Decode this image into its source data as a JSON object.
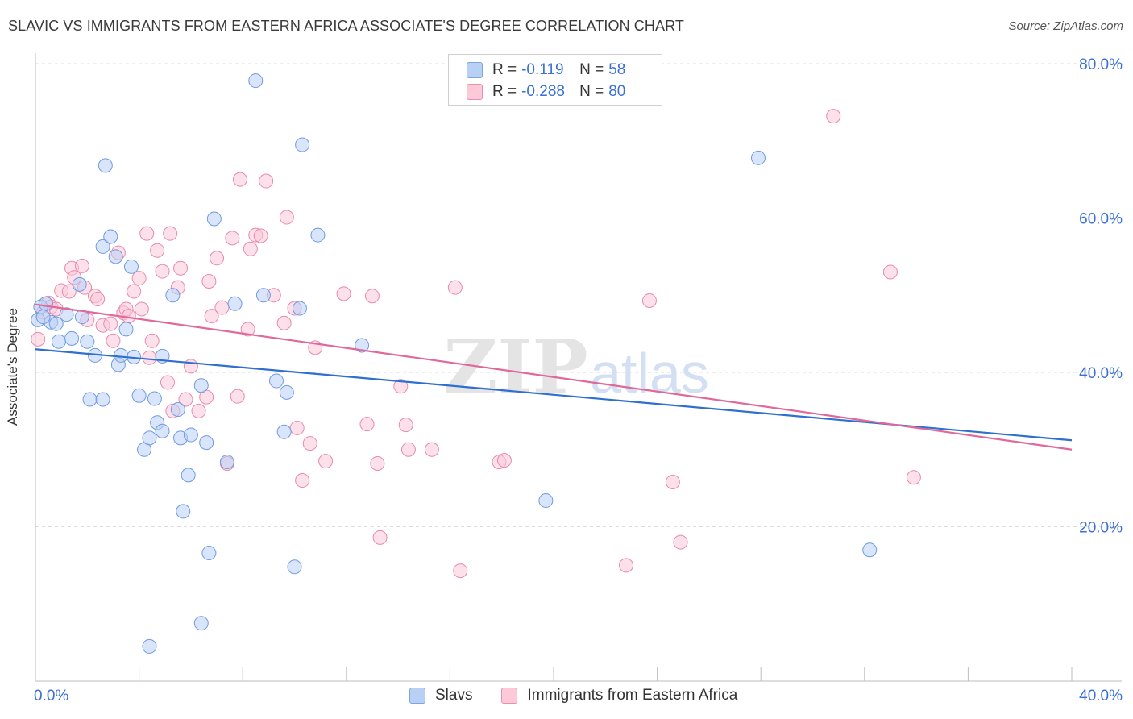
{
  "title": "SLAVIC VS IMMIGRANTS FROM EASTERN AFRICA ASSOCIATE'S DEGREE CORRELATION CHART",
  "source": "Source: ZipAtlas.com",
  "legend": {
    "r_label": "R =",
    "n_label": "N =",
    "series1": {
      "r": "-0.119",
      "n": "58"
    },
    "series2": {
      "r": "-0.288",
      "n": "80"
    }
  },
  "colors": {
    "blue_fill": "#b9d0f5",
    "blue_stroke": "#6f9be0",
    "blue_line": "#2e6fd0",
    "pink_fill": "#fbc9d8",
    "pink_stroke": "#e98aaa",
    "pink_line": "#e0699a",
    "axis_text": "#3a6fd8",
    "grid": "#dcdcdc"
  },
  "watermark": {
    "zip": "ZIP",
    "atlas": "atlas"
  },
  "chart_data": {
    "type": "scatter",
    "title": "SLAVIC VS IMMIGRANTS FROM EASTERN AFRICA ASSOCIATE'S DEGREE CORRELATION CHART",
    "xlabel": "",
    "ylabel": "Associate's Degree",
    "xlim": [
      0,
      40
    ],
    "ylim": [
      0,
      80
    ],
    "x_tick_labels": [
      "0.0%",
      "40.0%"
    ],
    "y_tick_labels": [
      "20.0%",
      "40.0%",
      "60.0%",
      "80.0%"
    ],
    "y_ticks": [
      20,
      40,
      60,
      80
    ],
    "legend_labels": [
      "Slavs",
      "Immigrants from Eastern Africa"
    ],
    "series": [
      {
        "name": "Slavs",
        "trend": {
          "x": [
            0,
            40
          ],
          "y": [
            43.0,
            31.2
          ]
        },
        "points": [
          [
            0.2,
            48.5
          ],
          [
            0.4,
            48.9
          ],
          [
            0.6,
            46.5
          ],
          [
            0.8,
            46.3
          ],
          [
            0.9,
            44.0
          ],
          [
            1.4,
            44.4
          ],
          [
            1.2,
            47.5
          ],
          [
            1.7,
            51.4
          ],
          [
            1.8,
            47.2
          ],
          [
            2.0,
            44.0
          ],
          [
            2.3,
            42.2
          ],
          [
            2.1,
            36.5
          ],
          [
            2.6,
            36.5
          ],
          [
            2.6,
            56.3
          ],
          [
            2.7,
            66.8
          ],
          [
            2.9,
            57.6
          ],
          [
            3.1,
            55.0
          ],
          [
            3.2,
            41.0
          ],
          [
            3.3,
            42.2
          ],
          [
            3.5,
            45.6
          ],
          [
            3.7,
            53.7
          ],
          [
            3.8,
            42.0
          ],
          [
            4.0,
            37.0
          ],
          [
            4.2,
            30.0
          ],
          [
            4.4,
            31.5
          ],
          [
            4.6,
            36.6
          ],
          [
            4.7,
            33.5
          ],
          [
            4.9,
            42.1
          ],
          [
            4.9,
            32.4
          ],
          [
            5.3,
            50.0
          ],
          [
            5.5,
            35.2
          ],
          [
            5.6,
            31.5
          ],
          [
            5.7,
            22.0
          ],
          [
            5.9,
            26.7
          ],
          [
            6.0,
            31.9
          ],
          [
            6.4,
            38.3
          ],
          [
            6.6,
            30.9
          ],
          [
            6.7,
            16.6
          ],
          [
            6.9,
            59.9
          ],
          [
            7.4,
            28.4
          ],
          [
            7.7,
            48.9
          ],
          [
            8.5,
            77.8
          ],
          [
            8.8,
            50.0
          ],
          [
            9.3,
            38.9
          ],
          [
            9.6,
            32.3
          ],
          [
            9.7,
            37.4
          ],
          [
            10.0,
            14.8
          ],
          [
            10.2,
            48.3
          ],
          [
            10.3,
            69.5
          ],
          [
            10.9,
            57.8
          ],
          [
            12.6,
            43.5
          ],
          [
            6.4,
            7.5
          ],
          [
            4.4,
            4.5
          ],
          [
            19.7,
            23.4
          ],
          [
            27.9,
            67.8
          ],
          [
            32.2,
            17.0
          ],
          [
            0.1,
            46.8
          ],
          [
            0.3,
            47.2
          ]
        ]
      },
      {
        "name": "Immigrants from Eastern Africa",
        "trend": {
          "x": [
            0,
            40
          ],
          "y": [
            48.8,
            30.0
          ]
        },
        "points": [
          [
            0.1,
            44.3
          ],
          [
            0.3,
            47.8
          ],
          [
            0.5,
            49.0
          ],
          [
            0.6,
            48.5
          ],
          [
            0.8,
            48.2
          ],
          [
            1.0,
            50.6
          ],
          [
            1.3,
            50.5
          ],
          [
            1.4,
            53.5
          ],
          [
            1.5,
            52.3
          ],
          [
            1.8,
            53.8
          ],
          [
            1.9,
            51.0
          ],
          [
            2.0,
            46.8
          ],
          [
            2.3,
            49.9
          ],
          [
            2.4,
            49.5
          ],
          [
            2.6,
            46.1
          ],
          [
            2.9,
            46.3
          ],
          [
            3.0,
            44.1
          ],
          [
            3.2,
            55.5
          ],
          [
            3.4,
            47.7
          ],
          [
            3.5,
            48.2
          ],
          [
            3.6,
            47.3
          ],
          [
            3.8,
            50.5
          ],
          [
            4.0,
            52.2
          ],
          [
            4.1,
            48.2
          ],
          [
            4.3,
            58.0
          ],
          [
            4.4,
            41.9
          ],
          [
            4.5,
            44.1
          ],
          [
            4.7,
            55.8
          ],
          [
            4.9,
            53.1
          ],
          [
            5.1,
            38.7
          ],
          [
            5.2,
            58.0
          ],
          [
            5.3,
            35.0
          ],
          [
            5.5,
            51.0
          ],
          [
            5.6,
            53.5
          ],
          [
            5.8,
            36.5
          ],
          [
            6.0,
            40.8
          ],
          [
            6.3,
            35.0
          ],
          [
            6.6,
            36.8
          ],
          [
            6.7,
            51.8
          ],
          [
            6.8,
            47.3
          ],
          [
            7.0,
            54.8
          ],
          [
            7.2,
            48.4
          ],
          [
            7.4,
            28.2
          ],
          [
            7.6,
            57.4
          ],
          [
            7.8,
            36.9
          ],
          [
            7.9,
            65.0
          ],
          [
            8.2,
            45.6
          ],
          [
            8.3,
            56.0
          ],
          [
            8.5,
            57.8
          ],
          [
            8.7,
            57.7
          ],
          [
            8.9,
            64.8
          ],
          [
            9.2,
            50.0
          ],
          [
            9.6,
            46.4
          ],
          [
            9.7,
            60.1
          ],
          [
            10.0,
            48.3
          ],
          [
            10.1,
            32.8
          ],
          [
            10.3,
            26.0
          ],
          [
            10.6,
            30.8
          ],
          [
            10.8,
            43.2
          ],
          [
            11.2,
            28.5
          ],
          [
            11.9,
            50.2
          ],
          [
            12.8,
            33.3
          ],
          [
            13.0,
            49.9
          ],
          [
            13.2,
            28.2
          ],
          [
            13.3,
            18.6
          ],
          [
            14.1,
            38.2
          ],
          [
            14.3,
            33.2
          ],
          [
            14.4,
            30.0
          ],
          [
            15.3,
            30.0
          ],
          [
            16.2,
            51.0
          ],
          [
            16.4,
            14.3
          ],
          [
            17.9,
            28.4
          ],
          [
            18.1,
            28.6
          ],
          [
            22.8,
            15.0
          ],
          [
            23.7,
            49.3
          ],
          [
            24.6,
            25.8
          ],
          [
            24.9,
            18.0
          ],
          [
            30.8,
            73.2
          ],
          [
            33.0,
            53.0
          ],
          [
            33.9,
            26.4
          ]
        ]
      }
    ]
  }
}
